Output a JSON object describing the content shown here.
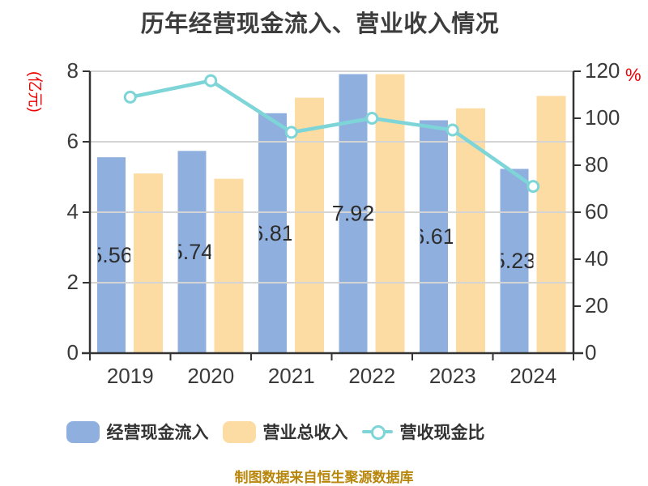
{
  "title": "历年经营现金流入、营业收入情况",
  "footer": "制图数据来自恒生聚源数据库",
  "footer_color": "#B8860B",
  "chart_data": {
    "type": "bar",
    "subtype": "grouped-bars-with-line",
    "title": "历年经营现金流入、营业收入情况",
    "categories": [
      "2019",
      "2020",
      "2021",
      "2022",
      "2023",
      "2024"
    ],
    "series": [
      {
        "name": "经营现金流入",
        "type": "bar",
        "color": "#8FB0DF",
        "yaxis": "left",
        "values": [
          5.56,
          5.74,
          6.81,
          7.92,
          6.61,
          5.23
        ],
        "value_labels": [
          "5.56",
          "5.74",
          "6.81",
          "7.92",
          "6.61",
          "5.23"
        ]
      },
      {
        "name": "营业总收入",
        "type": "bar",
        "color": "#FCDCA3",
        "yaxis": "left",
        "values": [
          5.1,
          4.95,
          7.25,
          7.92,
          6.95,
          7.3
        ]
      },
      {
        "name": "营收现金比",
        "type": "line",
        "color": "#7DD5D8",
        "marker": "white-circle",
        "yaxis": "right",
        "values": [
          109,
          116,
          94,
          100,
          95,
          71
        ]
      }
    ],
    "left_axis": {
      "unit": "(亿元)",
      "unit_color": "#EE0000",
      "min": 0,
      "max": 8,
      "ticks": [
        0,
        2,
        4,
        6,
        8
      ]
    },
    "right_axis": {
      "unit": "%",
      "unit_color": "#EE0000",
      "min": 0,
      "max": 120,
      "ticks": [
        0,
        20,
        40,
        60,
        80,
        100,
        120
      ]
    },
    "grid": true,
    "legend_position": "bottom",
    "legend": [
      "经营现金流入",
      "营业总收入",
      "营收现金比"
    ]
  }
}
